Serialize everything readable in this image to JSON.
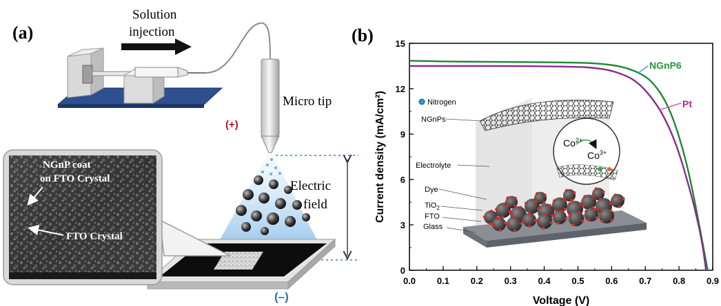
{
  "panel_a": {
    "label": "(a)",
    "solution_injection_1": "Solution",
    "solution_injection_2": "injection",
    "micro_tip": "Micro tip",
    "plus_terminal": "(+)",
    "minus_terminal": "(–)",
    "electric_field_1": "Electric",
    "electric_field_2": "field",
    "sem_label_1": "NGnP coat",
    "sem_label_2": "on FTO Crystal",
    "sem_label_3": "FTO Crystal"
  },
  "panel_b": {
    "label": "(b)",
    "inset": {
      "nitrogen": "Nitrogen",
      "ngnps": "NGnPs",
      "electrolyte": "Electrolyte",
      "dye": "Dye",
      "tio2": "TiO",
      "tio2_sub": "2",
      "fto": "FTO",
      "glass": "Glass",
      "co2": "Co",
      "co2_sup": "2+",
      "co3": "Co",
      "co3_sup": "3+"
    }
  },
  "colors": {
    "ngnp6": "#1a8a2e",
    "pt": "#8a2a8e",
    "series_label_ngnp6": "#1f9a3a",
    "series_label_pt": "#c0248f",
    "terminal": "#b5121b",
    "stage_blue": "#2f4f8f"
  },
  "chart_data": {
    "type": "line",
    "xlabel": "Voltage (V)",
    "ylabel": "Current density (mA/cm²)",
    "xlim": [
      0.0,
      0.9
    ],
    "ylim": [
      0,
      15
    ],
    "x_ticks": [
      "0.0",
      "0.1",
      "0.2",
      "0.3",
      "0.4",
      "0.5",
      "0.6",
      "0.7",
      "0.8",
      "0.9"
    ],
    "y_ticks": [
      "0",
      "3",
      "6",
      "9",
      "12",
      "15"
    ],
    "grid": false,
    "series": [
      {
        "name": "NGnP6",
        "x": [
          0.0,
          0.1,
          0.2,
          0.3,
          0.4,
          0.5,
          0.55,
          0.6,
          0.65,
          0.7,
          0.73,
          0.76,
          0.79,
          0.82,
          0.84,
          0.86,
          0.875,
          0.885
        ],
        "y": [
          13.85,
          13.8,
          13.78,
          13.77,
          13.75,
          13.72,
          13.68,
          13.58,
          13.35,
          12.85,
          12.2,
          11.2,
          9.6,
          7.3,
          5.3,
          3.0,
          1.2,
          0
        ]
      },
      {
        "name": "Pt",
        "x": [
          0.0,
          0.1,
          0.2,
          0.3,
          0.4,
          0.5,
          0.55,
          0.6,
          0.65,
          0.68,
          0.71,
          0.74,
          0.77,
          0.8,
          0.83,
          0.85,
          0.87,
          0.88
        ],
        "y": [
          13.5,
          13.5,
          13.5,
          13.5,
          13.48,
          13.45,
          13.38,
          13.2,
          12.8,
          12.35,
          11.65,
          10.75,
          9.5,
          7.8,
          5.5,
          3.8,
          1.7,
          0
        ]
      }
    ]
  }
}
